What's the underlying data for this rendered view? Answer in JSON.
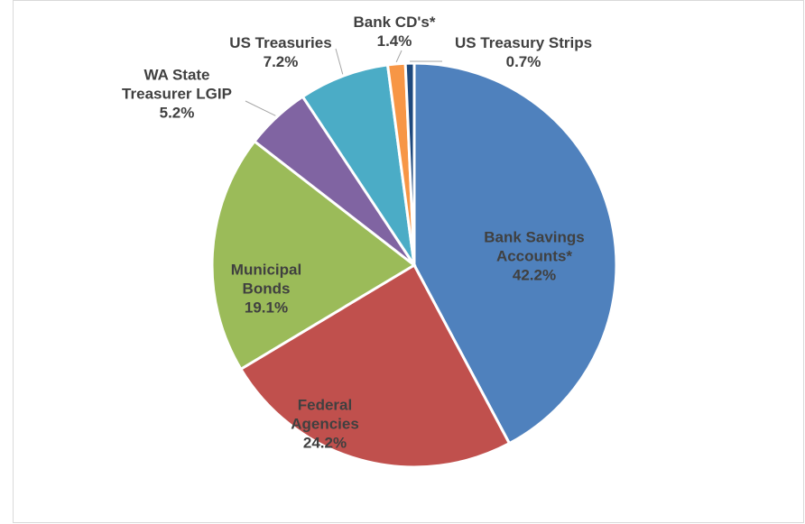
{
  "chart_data": {
    "type": "pie",
    "categories": [
      "Bank Savings Accounts*",
      "Federal Agencies",
      "Municipal Bonds",
      "WA State Treasurer LGIP",
      "US Treasuries",
      "Bank CD's*",
      "US Treasury Strips"
    ],
    "values": [
      42.2,
      24.2,
      19.1,
      5.2,
      7.2,
      1.4,
      0.7
    ],
    "value_labels": [
      "42.2%",
      "24.2%",
      "19.1%",
      "5.2%",
      "7.2%",
      "1.4%",
      "0.7%"
    ],
    "colors": [
      "#4f81bd",
      "#c0504d",
      "#9bbb59",
      "#8064a2",
      "#4bacc6",
      "#f79646",
      "#1f497d"
    ]
  }
}
